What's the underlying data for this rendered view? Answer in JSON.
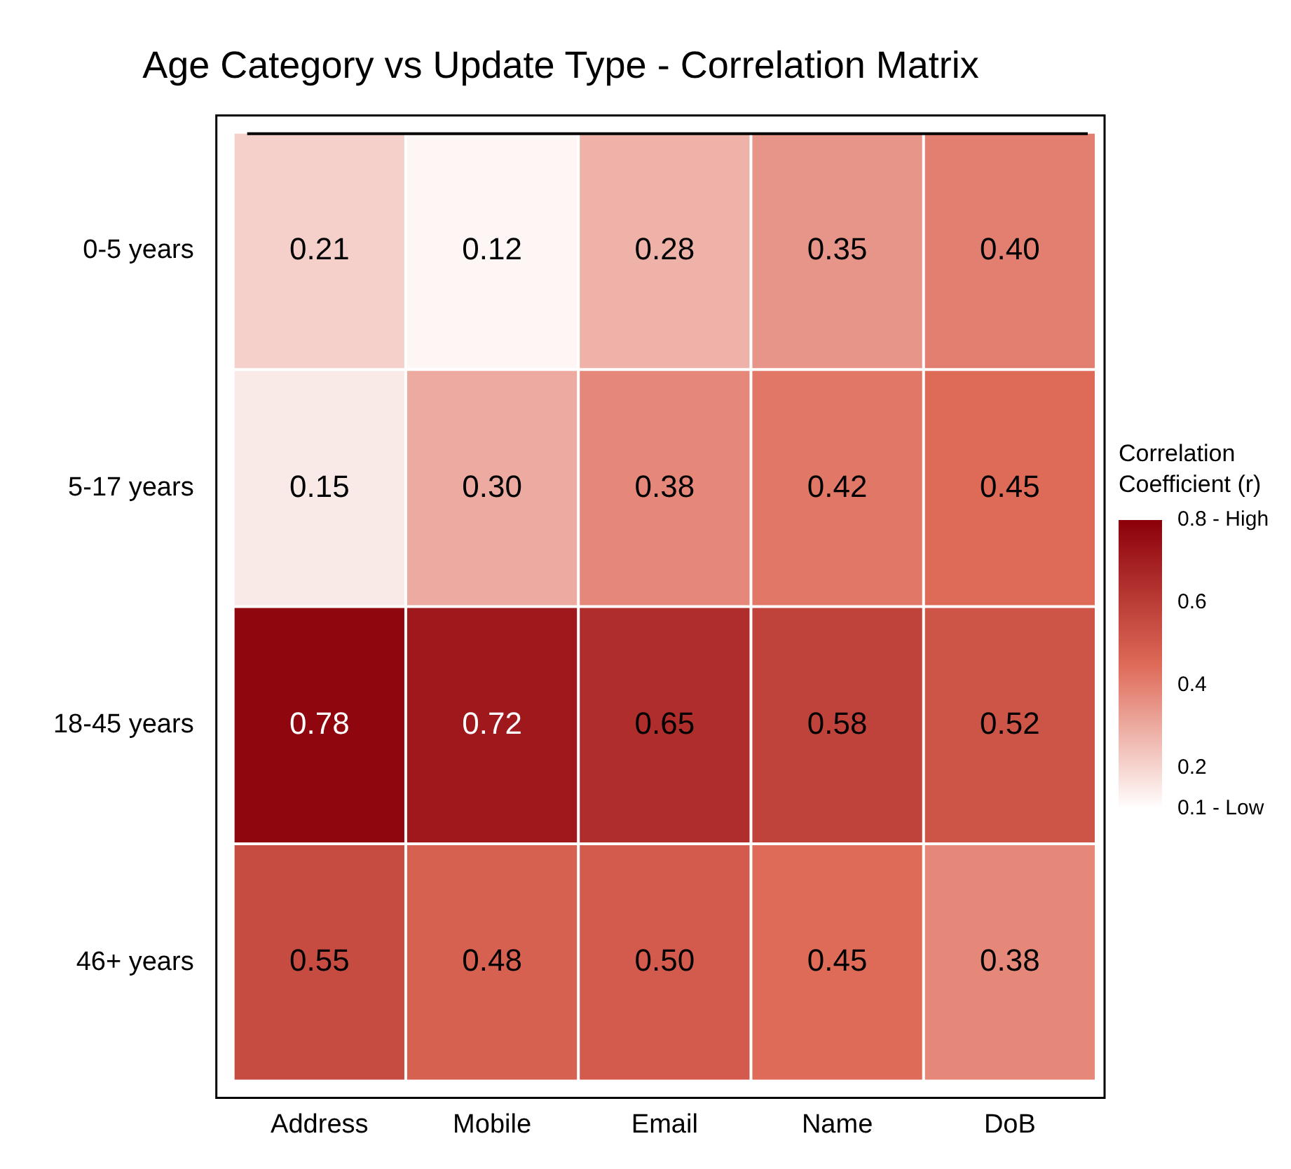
{
  "chart_data": {
    "type": "heatmap",
    "title": "Age Category vs Update Type - Correlation Matrix",
    "categories": [
      "Address",
      "Mobile",
      "Email",
      "Name",
      "DoB"
    ],
    "y_categories": [
      "0-5 years",
      "5-17 years",
      "18-45 years",
      "46+ years"
    ],
    "cells": [
      [
        0.21,
        0.12,
        0.28,
        0.35,
        0.4
      ],
      [
        0.15,
        0.3,
        0.38,
        0.42,
        0.45
      ],
      [
        0.78,
        0.72,
        0.65,
        0.58,
        0.52
      ],
      [
        0.55,
        0.48,
        0.5,
        0.45,
        0.38
      ]
    ],
    "cell_labels": [
      [
        "0.21",
        "0.12",
        "0.28",
        "0.35",
        "0.40"
      ],
      [
        "0.15",
        "0.30",
        "0.38",
        "0.42",
        "0.45"
      ],
      [
        "0.78",
        "0.72",
        "0.65",
        "0.58",
        "0.52"
      ],
      [
        "0.55",
        "0.48",
        "0.50",
        "0.45",
        "0.38"
      ]
    ],
    "clabel": "Correlation Coefficient (r)",
    "clim": [
      0.1,
      0.8
    ],
    "cticks": [
      {
        "value": 0.8,
        "label": "0.8 - High"
      },
      0.6,
      0.4,
      0.2,
      {
        "value": 0.1,
        "label": "0.1 - Low"
      }
    ]
  }
}
